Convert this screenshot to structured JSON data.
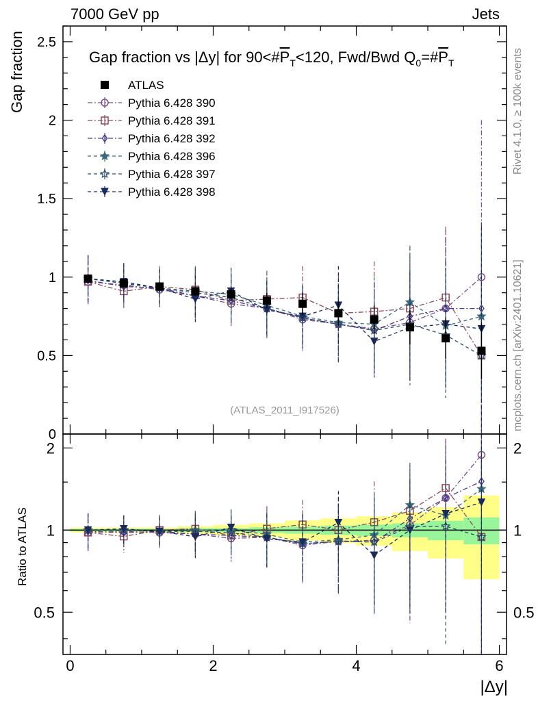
{
  "header": {
    "left": "7000 GeV pp",
    "right": "Jets"
  },
  "side": {
    "rivet": "Rivet 4.1.0, ≥ 100k events",
    "mcplots": "mcplots.cern.ch [arXiv:2401.10621]"
  },
  "chart_data": {
    "type": "scatter",
    "title": "Gap fraction vs |Δy| for 90<#P̅T<120, Fwd/Bwd Q₀=#P̅T",
    "title_parts": {
      "prefix": "Gap fraction vs |Δy| for 90<#",
      "pt": "P",
      "t": "T",
      "mid": "<120, Fwd/Bwd Q",
      "zero": "0",
      "eq": "=#",
      "pt2": "P",
      "t2": "T"
    },
    "analysis": "(ATLAS_2011_I917526)",
    "xlabel": "|Δy|",
    "ylabel": "Gap fraction",
    "ratio_ylabel": "Ratio to ATLAS",
    "xlim": [
      -0.1,
      6.1
    ],
    "ylim": [
      0,
      2.6
    ],
    "ratio_ylim": [
      0.35,
      2.25
    ],
    "x_ticks": [
      0,
      2,
      4,
      6
    ],
    "x_tick_labels": [
      "0",
      "2",
      "4",
      "6"
    ],
    "y_ticks": [
      0.5,
      1,
      1.5,
      2,
      2.5
    ],
    "y_tick_labels": [
      "0.5",
      "1",
      "1.5",
      "2",
      "2.5"
    ],
    "y_zero_label": "0",
    "ratio_ticks": [
      0.5,
      1,
      2
    ],
    "ratio_tick_labels": [
      "0.5",
      "1",
      "2"
    ],
    "x": [
      0.25,
      0.75,
      1.25,
      1.75,
      2.25,
      2.75,
      3.25,
      3.75,
      4.25,
      4.75,
      5.25,
      5.75
    ],
    "data": {
      "name": "ATLAS",
      "values": [
        0.99,
        0.96,
        0.94,
        0.91,
        0.89,
        0.85,
        0.83,
        0.77,
        0.73,
        0.68,
        0.61,
        0.53
      ],
      "err_stat": [
        0.01,
        0.01,
        0.01,
        0.015,
        0.015,
        0.02,
        0.025,
        0.03,
        0.035,
        0.04,
        0.05,
        0.06
      ],
      "err_tot": [
        0.02,
        0.02,
        0.02,
        0.03,
        0.04,
        0.05,
        0.07,
        0.08,
        0.09,
        0.11,
        0.13,
        0.18
      ]
    },
    "series": [
      {
        "name": "Pythia 6.428 390",
        "marker": "circle",
        "color": "#7a4d8a",
        "dash": "7,3,2,3",
        "values": [
          0.97,
          0.95,
          0.92,
          0.88,
          0.83,
          0.8,
          0.73,
          0.7,
          0.67,
          0.71,
          0.8,
          1.0
        ],
        "errors": [
          0.15,
          0.12,
          0.12,
          0.15,
          0.15,
          0.18,
          0.2,
          0.25,
          0.3,
          0.4,
          0.5,
          1.0
        ]
      },
      {
        "name": "Pythia 6.428 391",
        "marker": "square",
        "color": "#8a4a5a",
        "dash": "7,3,2,3",
        "values": [
          0.97,
          0.91,
          0.94,
          0.92,
          0.85,
          0.86,
          0.87,
          0.77,
          0.78,
          0.8,
          0.87,
          0.5
        ],
        "errors": [
          0.15,
          0.12,
          0.13,
          0.15,
          0.15,
          0.18,
          0.2,
          0.25,
          0.32,
          0.4,
          0.45,
          0.6
        ]
      },
      {
        "name": "Pythia 6.428 392",
        "marker": "diamond",
        "color": "#4a3a8a",
        "dash": "7,3,2,3",
        "values": [
          0.98,
          0.94,
          0.93,
          0.88,
          0.85,
          0.8,
          0.74,
          0.7,
          0.66,
          0.75,
          0.8,
          0.8
        ],
        "errors": [
          0.15,
          0.12,
          0.12,
          0.15,
          0.15,
          0.18,
          0.2,
          0.25,
          0.3,
          0.4,
          0.45,
          0.55
        ]
      },
      {
        "name": "Pythia 6.428 396",
        "marker": "star",
        "color": "#3a6a7a",
        "dash": "5,4",
        "values": [
          0.99,
          0.96,
          0.93,
          0.91,
          0.89,
          0.82,
          0.75,
          0.71,
          0.7,
          0.84,
          0.69,
          0.75
        ],
        "errors": [
          0.15,
          0.12,
          0.12,
          0.15,
          0.15,
          0.18,
          0.2,
          0.25,
          0.3,
          0.35,
          0.4,
          0.55
        ]
      },
      {
        "name": "Pythia 6.428 397",
        "marker": "star-open",
        "color": "#2a4a6a",
        "dash": "5,4",
        "values": [
          0.99,
          0.96,
          0.93,
          0.9,
          0.87,
          0.8,
          0.74,
          0.7,
          0.66,
          0.7,
          0.63,
          0.5
        ],
        "errors": [
          0.15,
          0.12,
          0.12,
          0.15,
          0.15,
          0.18,
          0.2,
          0.25,
          0.3,
          0.35,
          0.4,
          0.55
        ]
      },
      {
        "name": "Pythia 6.428 398",
        "marker": "triangle-down",
        "color": "#1a2a5a",
        "dash": "5,4",
        "values": [
          0.99,
          0.97,
          0.93,
          0.86,
          0.91,
          0.79,
          0.75,
          0.82,
          0.59,
          0.68,
          0.7,
          0.67
        ],
        "errors": [
          0.15,
          0.12,
          0.12,
          0.15,
          0.15,
          0.18,
          0.2,
          0.25,
          0.2,
          0.35,
          0.4,
          0.65
        ]
      }
    ],
    "legend_position": "top-left"
  }
}
